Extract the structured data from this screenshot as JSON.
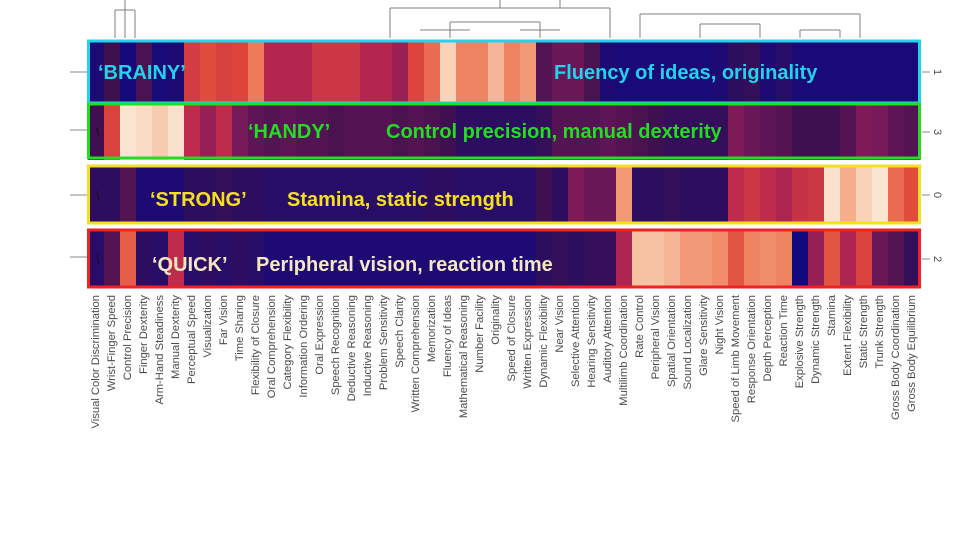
{
  "chart_data": {
    "type": "heatmap",
    "columns": [
      "Visual Color Discrimination",
      "Wrist-Finger Speed",
      "Control Precision",
      "Finger Dexterity",
      "Arm-Hand Steadiness",
      "Manual Dexterity",
      "Perceptual Speed",
      "Visualization",
      "Far Vision",
      "Time Sharing",
      "Flexibility of Closure",
      "Oral Comprehension",
      "Category Flexibility",
      "Information Ordering",
      "Oral Expression",
      "Speech Recognition",
      "Deductive Reasoning",
      "Inductive Reasoning",
      "Problem Sensitivity",
      "Speech Clarity",
      "Written Comprehension",
      "Memorization",
      "Fluency of Ideas",
      "Mathematical Reasoning",
      "Number Facility",
      "Originality",
      "Speed of Closure",
      "Written Expression",
      "Dynamic Flexibility",
      "Near Vision",
      "Selective Attention",
      "Hearing Sensitivity",
      "Auditory Attention",
      "Multilimb Coordination",
      "Rate Control",
      "Peripheral Vision",
      "Spatial Orientation",
      "Sound Localization",
      "Glare Sensitivity",
      "Night Vision",
      "Speed of Limb Movement",
      "Response Orientation",
      "Depth Perception",
      "Reaction Time",
      "Explosive Strength",
      "Dynamic Strength",
      "Stamina",
      "Extent Flexibility",
      "Static Strength",
      "Trunk Strength",
      "Gross Body Coordination",
      "Gross Body Equilibrium"
    ],
    "rows": [
      {
        "y_tick": "1",
        "values": [
          0.05,
          0.15,
          0.03,
          0.18,
          0.04,
          0.05,
          0.52,
          0.58,
          0.54,
          0.56,
          0.68,
          0.42,
          0.42,
          0.42,
          0.5,
          0.5,
          0.5,
          0.42,
          0.42,
          0.36,
          0.56,
          0.65,
          0.9,
          0.7,
          0.7,
          0.82,
          0.7,
          0.75,
          0.2,
          0.25,
          0.25,
          0.18,
          0.05,
          0.04,
          0.04,
          0.04,
          0.04,
          0.04,
          0.04,
          0.05,
          0.1,
          0.12,
          0.05,
          0.08,
          0.04,
          0.04,
          0.04,
          0.04,
          0.04,
          0.04,
          0.04,
          0.04
        ]
      },
      {
        "y_tick": "3",
        "values": [
          0.15,
          0.55,
          0.96,
          0.93,
          0.88,
          0.95,
          0.45,
          0.35,
          0.45,
          0.28,
          0.22,
          0.2,
          0.22,
          0.2,
          0.2,
          0.18,
          0.2,
          0.2,
          0.2,
          0.18,
          0.2,
          0.18,
          0.15,
          0.1,
          0.1,
          0.1,
          0.1,
          0.1,
          0.12,
          0.2,
          0.2,
          0.2,
          0.22,
          0.2,
          0.18,
          0.15,
          0.12,
          0.12,
          0.12,
          0.12,
          0.3,
          0.25,
          0.22,
          0.2,
          0.15,
          0.15,
          0.15,
          0.2,
          0.3,
          0.28,
          0.22,
          0.2
        ]
      },
      {
        "y_tick": "0",
        "values": [
          0.1,
          0.1,
          0.2,
          0.05,
          0.05,
          0.05,
          0.1,
          0.1,
          0.12,
          0.1,
          0.1,
          0.08,
          0.08,
          0.08,
          0.08,
          0.08,
          0.08,
          0.08,
          0.08,
          0.08,
          0.08,
          0.1,
          0.1,
          0.08,
          0.08,
          0.08,
          0.08,
          0.08,
          0.15,
          0.1,
          0.3,
          0.25,
          0.25,
          0.75,
          0.1,
          0.1,
          0.12,
          0.1,
          0.1,
          0.1,
          0.45,
          0.5,
          0.45,
          0.4,
          0.48,
          0.5,
          0.95,
          0.8,
          0.9,
          0.96,
          0.65,
          0.58
        ]
      },
      {
        "y_tick": "2",
        "values": [
          0.08,
          0.2,
          0.62,
          0.1,
          0.08,
          0.45,
          0.08,
          0.1,
          0.08,
          0.1,
          0.08,
          0.05,
          0.05,
          0.05,
          0.05,
          0.05,
          0.05,
          0.05,
          0.05,
          0.05,
          0.05,
          0.05,
          0.05,
          0.05,
          0.05,
          0.05,
          0.05,
          0.05,
          0.1,
          0.12,
          0.1,
          0.12,
          0.12,
          0.4,
          0.85,
          0.85,
          0.82,
          0.75,
          0.75,
          0.72,
          0.6,
          0.7,
          0.72,
          0.7,
          0.02,
          0.35,
          0.6,
          0.4,
          0.55,
          0.25,
          0.2,
          0.12
        ]
      }
    ],
    "clusters": [
      {
        "name": "‘BRAINY’",
        "description": "Fluency of ideas, originality",
        "name_color": "#22d3ee",
        "desc_color": "#22d3ee",
        "border_color": "#22d3ee"
      },
      {
        "name": "‘HANDY’",
        "description": "Control precision, manual dexterity",
        "name_color": "#22dd22",
        "desc_color": "#22dd22",
        "border_color": "#22dd22"
      },
      {
        "name": "‘STRONG’",
        "description": "Stamina, static strength",
        "name_color": "#f5e020",
        "desc_color": "#f5e020",
        "border_color": "#f5e020"
      },
      {
        "name": "‘QUICK’",
        "description": "Peripheral vision, reaction time",
        "name_color": "#f5e6c4",
        "desc_color": "#f5e6c4",
        "border_color": "#ee2222"
      }
    ],
    "row_marks": [
      "\\",
      "\\",
      "\\"
    ],
    "colormap": [
      "#0d0887",
      "#3b0f4f",
      "#7a1a5a",
      "#b8264f",
      "#e0483a",
      "#f08a66",
      "#f6c6a8",
      "#fbf0e2"
    ],
    "dendrogram": true
  }
}
